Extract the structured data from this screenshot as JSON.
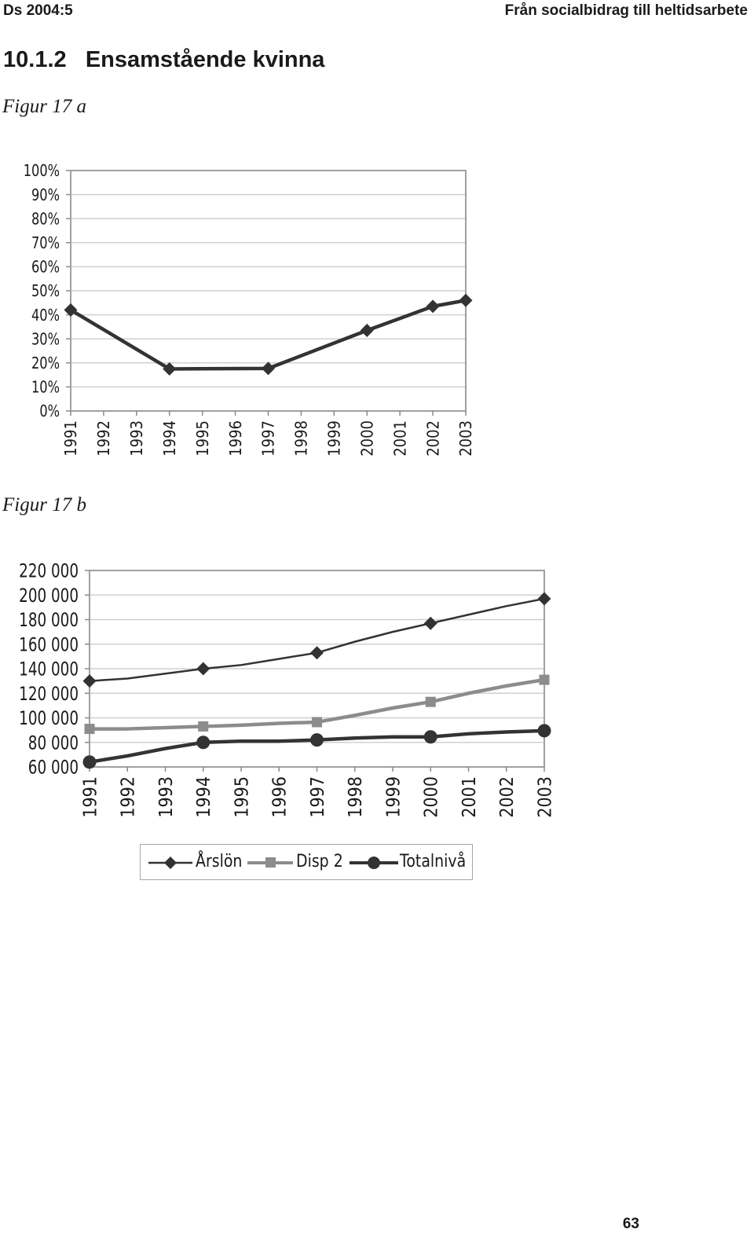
{
  "header": {
    "left": "Ds 2004:5",
    "right": "Från socialbidrag till heltidsarbete"
  },
  "section": {
    "number": "10.1.2",
    "title": "Ensamstående kvinna"
  },
  "figures": {
    "a_label": "Figur 17 a",
    "b_label": "Figur 17 b"
  },
  "page_number": "63",
  "chart_data": [
    {
      "type": "line",
      "title": "",
      "xlabel": "",
      "ylabel": "",
      "categories": [
        "1991",
        "1992",
        "1993",
        "1994",
        "1995",
        "1996",
        "1997",
        "1998",
        "1999",
        "2000",
        "2001",
        "2002",
        "2003"
      ],
      "y_ticks": [
        "0%",
        "10%",
        "20%",
        "30%",
        "40%",
        "50%",
        "60%",
        "70%",
        "80%",
        "90%",
        "100%"
      ],
      "ylim": [
        0,
        100
      ],
      "grid": true,
      "series": [
        {
          "values": [
            42,
            null,
            null,
            17.5,
            null,
            null,
            17.7,
            null,
            null,
            33.5,
            null,
            43.5,
            46
          ],
          "color": "#333333",
          "marker": "diamond"
        }
      ]
    },
    {
      "type": "line",
      "title": "",
      "xlabel": "",
      "ylabel": "",
      "categories": [
        "1991",
        "1992",
        "1993",
        "1994",
        "1995",
        "1996",
        "1997",
        "1998",
        "1999",
        "2000",
        "2001",
        "2002",
        "2003"
      ],
      "y_ticks": [
        "60 000",
        "80 000",
        "100 000",
        "120 000",
        "140 000",
        "160 000",
        "180 000",
        "200 000",
        "220 000"
      ],
      "ylim": [
        60000,
        220000
      ],
      "grid": true,
      "legend_position": "bottom",
      "series": [
        {
          "name": "Årslön",
          "color": "#333333",
          "marker": "diamond",
          "values": [
            130000,
            132000,
            136000,
            140000,
            143000,
            148000,
            153000,
            162000,
            170000,
            177000,
            184000,
            191000,
            197000
          ]
        },
        {
          "name": "Disp 2",
          "color": "#8c8c8c",
          "marker": "square",
          "values": [
            91000,
            91000,
            92000,
            93000,
            94000,
            95500,
            96500,
            102000,
            108000,
            113000,
            120000,
            126000,
            131000
          ]
        },
        {
          "name": "Totalnivå",
          "color": "#333333",
          "marker": "circle",
          "values": [
            64000,
            69000,
            75000,
            80000,
            81000,
            81000,
            82000,
            83500,
            84500,
            84500,
            87000,
            88500,
            89500
          ]
        }
      ]
    }
  ]
}
